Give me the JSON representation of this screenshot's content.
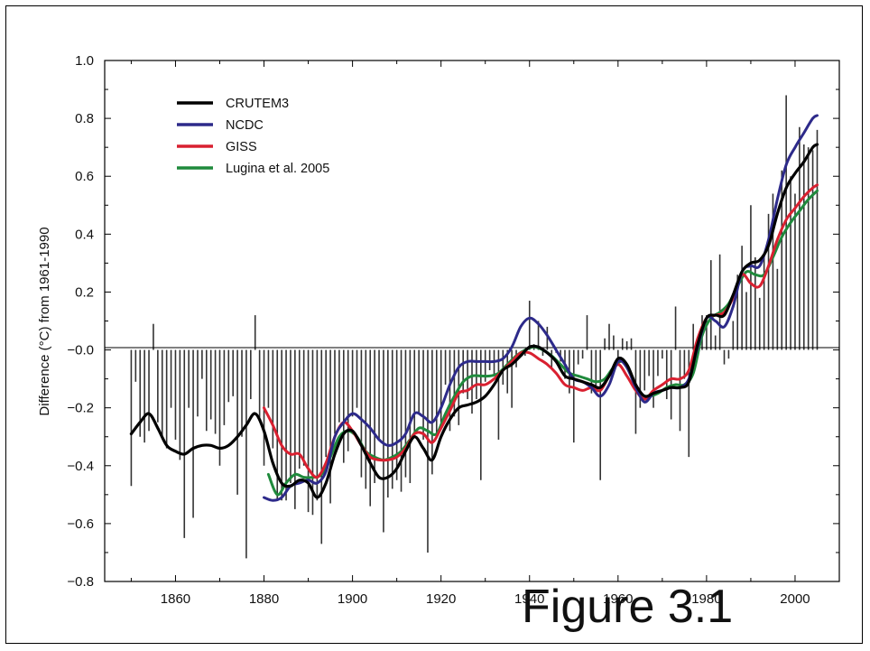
{
  "figure_label": "Figure 3.1",
  "chart_data": {
    "type": "line",
    "title": "",
    "xlabel": "",
    "ylabel": "Difference (°C) from 1961-1990",
    "xlim": [
      1844,
      2010
    ],
    "ylim": [
      -0.8,
      1.0
    ],
    "xticks": [
      1860,
      1880,
      1900,
      1920,
      1940,
      1960,
      1980,
      2000
    ],
    "xtick_labels": [
      "1860",
      "1880",
      "1900",
      "1920",
      "1940",
      "1960",
      "1980",
      "2000"
    ],
    "yticks": [
      -0.8,
      -0.6,
      -0.4,
      -0.2,
      0.0,
      0.2,
      0.4,
      0.6,
      0.8,
      1.0
    ],
    "ytick_labels": [
      "−0.8",
      "−0.6",
      "−0.4",
      "−0.2",
      "−0.0",
      "0.2",
      "0.4",
      "0.6",
      "0.8",
      "1.0"
    ],
    "grid": false,
    "legend_position": "top-left",
    "bars": {
      "name": "CRUTEM3 annual",
      "color": "#333333",
      "years": [
        1850,
        1851,
        1852,
        1853,
        1854,
        1855,
        1856,
        1857,
        1858,
        1859,
        1860,
        1861,
        1862,
        1863,
        1864,
        1865,
        1866,
        1867,
        1868,
        1869,
        1870,
        1871,
        1872,
        1873,
        1874,
        1875,
        1876,
        1877,
        1878,
        1879,
        1880,
        1881,
        1882,
        1883,
        1884,
        1885,
        1886,
        1887,
        1888,
        1889,
        1890,
        1891,
        1892,
        1893,
        1894,
        1895,
        1896,
        1897,
        1898,
        1899,
        1900,
        1901,
        1902,
        1903,
        1904,
        1905,
        1906,
        1907,
        1908,
        1909,
        1910,
        1911,
        1912,
        1913,
        1914,
        1915,
        1916,
        1917,
        1918,
        1919,
        1920,
        1921,
        1922,
        1923,
        1924,
        1925,
        1926,
        1927,
        1928,
        1929,
        1930,
        1931,
        1932,
        1933,
        1934,
        1935,
        1936,
        1937,
        1938,
        1939,
        1940,
        1941,
        1942,
        1943,
        1944,
        1945,
        1946,
        1947,
        1948,
        1949,
        1950,
        1951,
        1952,
        1953,
        1954,
        1955,
        1956,
        1957,
        1958,
        1959,
        1960,
        1961,
        1962,
        1963,
        1964,
        1965,
        1966,
        1967,
        1968,
        1969,
        1970,
        1971,
        1972,
        1973,
        1974,
        1975,
        1976,
        1977,
        1978,
        1979,
        1980,
        1981,
        1982,
        1983,
        1984,
        1985,
        1986,
        1987,
        1988,
        1989,
        1990,
        1991,
        1992,
        1993,
        1994,
        1995,
        1996,
        1997,
        1998,
        1999,
        2000,
        2001,
        2002,
        2003,
        2004,
        2005
      ],
      "values": [
        -0.47,
        -0.11,
        -0.3,
        -0.32,
        -0.28,
        0.09,
        -0.25,
        -0.3,
        -0.34,
        -0.2,
        -0.31,
        -0.38,
        -0.65,
        -0.2,
        -0.58,
        -0.23,
        -0.1,
        -0.28,
        -0.24,
        -0.29,
        -0.4,
        -0.26,
        -0.18,
        -0.16,
        -0.5,
        -0.3,
        -0.72,
        -0.17,
        0.12,
        -0.24,
        -0.4,
        -0.2,
        -0.34,
        -0.52,
        -0.52,
        -0.52,
        -0.46,
        -0.55,
        -0.41,
        -0.4,
        -0.56,
        -0.57,
        -0.52,
        -0.67,
        -0.37,
        -0.53,
        -0.29,
        -0.25,
        -0.39,
        -0.35,
        -0.23,
        -0.2,
        -0.44,
        -0.48,
        -0.54,
        -0.46,
        -0.31,
        -0.63,
        -0.51,
        -0.48,
        -0.45,
        -0.49,
        -0.44,
        -0.46,
        -0.3,
        -0.22,
        -0.31,
        -0.7,
        -0.43,
        -0.3,
        -0.25,
        -0.12,
        -0.28,
        -0.23,
        -0.26,
        -0.15,
        -0.17,
        -0.22,
        -0.17,
        -0.45,
        -0.11,
        -0.07,
        -0.09,
        -0.31,
        -0.12,
        -0.15,
        -0.2,
        -0.06,
        0.0,
        -0.02,
        0.17,
        0.02,
        0.1,
        -0.02,
        0.08,
        -0.06,
        -0.01,
        -0.04,
        -0.1,
        -0.15,
        -0.32,
        -0.05,
        -0.03,
        0.12,
        -0.15,
        -0.13,
        -0.45,
        0.04,
        0.09,
        0.05,
        -0.04,
        0.04,
        0.03,
        0.04,
        -0.29,
        -0.2,
        -0.14,
        -0.09,
        -0.2,
        -0.09,
        -0.03,
        -0.17,
        -0.24,
        0.15,
        -0.28,
        -0.1,
        -0.37,
        0.09,
        0.02,
        0.12,
        0.12,
        0.31,
        0.05,
        0.33,
        -0.05,
        -0.03,
        0.1,
        0.26,
        0.36,
        0.2,
        0.5,
        0.32,
        0.18,
        0.33,
        0.47,
        0.54,
        0.28,
        0.62,
        0.88,
        0.6,
        0.54,
        0.77,
        0.71,
        0.7,
        0.69,
        0.76
      ]
    },
    "series": [
      {
        "name": "CRUTEM3",
        "color": "#000000",
        "x": [
          1850,
          1852,
          1854,
          1856,
          1858,
          1860,
          1862,
          1864,
          1866,
          1868,
          1870,
          1872,
          1874,
          1876,
          1878,
          1880,
          1882,
          1884,
          1886,
          1888,
          1890,
          1892,
          1894,
          1896,
          1898,
          1900,
          1902,
          1904,
          1906,
          1908,
          1910,
          1912,
          1914,
          1916,
          1918,
          1920,
          1922,
          1924,
          1926,
          1928,
          1930,
          1932,
          1934,
          1936,
          1938,
          1940,
          1942,
          1944,
          1946,
          1948,
          1950,
          1952,
          1954,
          1956,
          1958,
          1960,
          1962,
          1964,
          1966,
          1968,
          1970,
          1972,
          1974,
          1976,
          1978,
          1980,
          1982,
          1984,
          1986,
          1988,
          1990,
          1992,
          1994,
          1996,
          1998,
          2000,
          2002,
          2004,
          2005
        ],
        "y": [
          -0.29,
          -0.25,
          -0.22,
          -0.27,
          -0.33,
          -0.35,
          -0.36,
          -0.34,
          -0.33,
          -0.33,
          -0.34,
          -0.33,
          -0.3,
          -0.26,
          -0.22,
          -0.28,
          -0.39,
          -0.46,
          -0.47,
          -0.45,
          -0.46,
          -0.51,
          -0.46,
          -0.36,
          -0.29,
          -0.28,
          -0.33,
          -0.39,
          -0.44,
          -0.44,
          -0.41,
          -0.35,
          -0.3,
          -0.34,
          -0.38,
          -0.3,
          -0.24,
          -0.2,
          -0.19,
          -0.18,
          -0.16,
          -0.12,
          -0.07,
          -0.05,
          -0.02,
          0.01,
          0.01,
          -0.01,
          -0.04,
          -0.09,
          -0.1,
          -0.11,
          -0.12,
          -0.13,
          -0.09,
          -0.03,
          -0.05,
          -0.12,
          -0.16,
          -0.15,
          -0.14,
          -0.13,
          -0.13,
          -0.11,
          0.02,
          0.11,
          0.12,
          0.12,
          0.19,
          0.27,
          0.3,
          0.31,
          0.36,
          0.47,
          0.56,
          0.61,
          0.65,
          0.7,
          0.71
        ]
      },
      {
        "name": "NCDC",
        "color": "#2d2a8a",
        "x": [
          1880,
          1882,
          1884,
          1886,
          1888,
          1890,
          1892,
          1894,
          1896,
          1898,
          1900,
          1902,
          1904,
          1906,
          1908,
          1910,
          1912,
          1914,
          1916,
          1918,
          1920,
          1922,
          1924,
          1926,
          1928,
          1930,
          1932,
          1934,
          1936,
          1938,
          1940,
          1942,
          1944,
          1946,
          1948,
          1950,
          1952,
          1954,
          1956,
          1958,
          1960,
          1962,
          1964,
          1966,
          1968,
          1970,
          1972,
          1974,
          1976,
          1978,
          1980,
          1982,
          1984,
          1986,
          1988,
          1990,
          1992,
          1994,
          1996,
          1998,
          2000,
          2002,
          2004,
          2005
        ],
        "y": [
          -0.51,
          -0.52,
          -0.51,
          -0.47,
          -0.46,
          -0.45,
          -0.46,
          -0.42,
          -0.3,
          -0.25,
          -0.22,
          -0.24,
          -0.27,
          -0.31,
          -0.33,
          -0.32,
          -0.29,
          -0.22,
          -0.23,
          -0.25,
          -0.2,
          -0.12,
          -0.06,
          -0.04,
          -0.04,
          -0.04,
          -0.04,
          -0.03,
          0.01,
          0.08,
          0.11,
          0.09,
          0.05,
          0.0,
          -0.05,
          -0.1,
          -0.11,
          -0.13,
          -0.16,
          -0.12,
          -0.04,
          -0.06,
          -0.13,
          -0.18,
          -0.15,
          -0.14,
          -0.13,
          -0.13,
          -0.1,
          0.01,
          0.11,
          0.1,
          0.08,
          0.15,
          0.27,
          0.29,
          0.29,
          0.38,
          0.52,
          0.64,
          0.7,
          0.75,
          0.8,
          0.81
        ]
      },
      {
        "name": "GISS",
        "color": "#d92030",
        "x": [
          1880,
          1882,
          1884,
          1886,
          1888,
          1890,
          1892,
          1894,
          1896,
          1898,
          1900,
          1902,
          1904,
          1906,
          1908,
          1910,
          1912,
          1914,
          1916,
          1918,
          1920,
          1922,
          1924,
          1926,
          1928,
          1930,
          1932,
          1934,
          1936,
          1938,
          1940,
          1942,
          1944,
          1946,
          1948,
          1950,
          1952,
          1954,
          1956,
          1958,
          1960,
          1962,
          1964,
          1966,
          1968,
          1970,
          1972,
          1974,
          1976,
          1978,
          1980,
          1982,
          1984,
          1986,
          1988,
          1990,
          1992,
          1994,
          1996,
          1998,
          2000,
          2002,
          2004,
          2005
        ],
        "y": [
          -0.2,
          -0.26,
          -0.33,
          -0.36,
          -0.36,
          -0.41,
          -0.44,
          -0.39,
          -0.3,
          -0.25,
          -0.28,
          -0.33,
          -0.37,
          -0.38,
          -0.38,
          -0.37,
          -0.34,
          -0.29,
          -0.29,
          -0.32,
          -0.27,
          -0.21,
          -0.15,
          -0.14,
          -0.12,
          -0.12,
          -0.1,
          -0.07,
          -0.04,
          -0.01,
          -0.01,
          -0.03,
          -0.05,
          -0.08,
          -0.12,
          -0.13,
          -0.14,
          -0.13,
          -0.14,
          -0.09,
          -0.05,
          -0.09,
          -0.14,
          -0.17,
          -0.14,
          -0.12,
          -0.1,
          -0.1,
          -0.07,
          0.04,
          0.11,
          0.12,
          0.13,
          0.18,
          0.26,
          0.23,
          0.22,
          0.29,
          0.38,
          0.45,
          0.49,
          0.53,
          0.56,
          0.57
        ]
      },
      {
        "name": "Lugina et al. 2005",
        "color": "#1f8a3c",
        "x": [
          1881,
          1883,
          1885,
          1887,
          1889,
          1891,
          1893,
          1895,
          1897,
          1899,
          1901,
          1903,
          1905,
          1907,
          1909,
          1911,
          1913,
          1915,
          1917,
          1919,
          1921,
          1923,
          1925,
          1927,
          1929,
          1931,
          1933,
          1935,
          1937,
          1939,
          1941,
          1943,
          1945,
          1947,
          1949,
          1951,
          1953,
          1955,
          1957,
          1959,
          1961,
          1963,
          1965,
          1967,
          1969,
          1971,
          1973,
          1975,
          1977,
          1979,
          1981,
          1983,
          1985,
          1987,
          1989,
          1991,
          1993,
          1995,
          1997,
          1999,
          2001,
          2003,
          2005
        ],
        "y": [
          -0.43,
          -0.5,
          -0.46,
          -0.43,
          -0.44,
          -0.44,
          -0.43,
          -0.37,
          -0.3,
          -0.28,
          -0.3,
          -0.35,
          -0.37,
          -0.38,
          -0.37,
          -0.35,
          -0.31,
          -0.27,
          -0.28,
          -0.29,
          -0.22,
          -0.16,
          -0.11,
          -0.09,
          -0.09,
          -0.09,
          -0.08,
          -0.05,
          -0.02,
          0.0,
          0.01,
          0.0,
          -0.02,
          -0.05,
          -0.08,
          -0.09,
          -0.1,
          -0.11,
          -0.1,
          -0.06,
          -0.04,
          -0.09,
          -0.15,
          -0.16,
          -0.15,
          -0.13,
          -0.12,
          -0.12,
          -0.08,
          0.05,
          0.11,
          0.13,
          0.16,
          0.22,
          0.27,
          0.26,
          0.26,
          0.32,
          0.39,
          0.44,
          0.48,
          0.52,
          0.55
        ]
      }
    ]
  }
}
